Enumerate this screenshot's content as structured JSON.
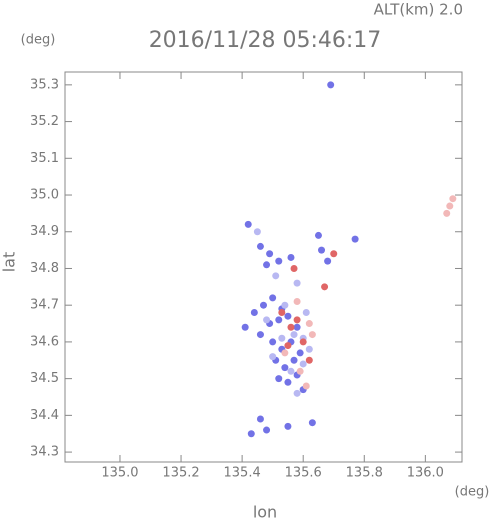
{
  "chart_data": {
    "type": "scatter",
    "title": "2016/11/28 05:46:17",
    "annotation": "ALT(km) 2.0",
    "y_unit": "(deg)",
    "x_unit": "(deg)",
    "xlabel": "lon",
    "ylabel": "lat",
    "xlim": [
      134.82,
      136.12
    ],
    "ylim": [
      34.273,
      35.335
    ],
    "xticks": [
      {
        "value": 135,
        "label": "135.0"
      },
      135.2,
      135.4,
      135.6,
      135.8,
      {
        "value": 136,
        "label": "136.0"
      }
    ],
    "yticks": [
      34.3,
      34.4,
      34.5,
      34.6,
      34.7,
      34.8,
      34.9,
      {
        "value": 35,
        "label": "35.0"
      },
      35.1,
      35.2,
      35.3
    ],
    "series": [
      {
        "color": "#7272e6",
        "x": [
          135.69,
          135.42,
          135.46,
          135.49,
          135.52,
          135.48,
          135.56,
          135.66,
          135.68,
          135.77,
          135.41,
          135.44,
          135.47,
          135.5,
          135.53,
          135.46,
          135.49,
          135.52,
          135.55,
          135.58,
          135.5,
          135.53,
          135.56,
          135.59,
          135.51,
          135.54,
          135.57,
          135.52,
          135.55,
          135.58,
          135.6,
          135.43,
          135.48,
          135.55,
          135.63,
          135.46,
          135.65
        ],
        "y": [
          35.3,
          34.92,
          34.86,
          34.84,
          34.82,
          34.81,
          34.83,
          34.85,
          34.82,
          34.88,
          34.64,
          34.68,
          34.7,
          34.72,
          34.69,
          34.62,
          34.65,
          34.66,
          34.67,
          34.64,
          34.6,
          34.58,
          34.6,
          34.57,
          34.55,
          34.53,
          34.55,
          34.5,
          34.49,
          34.51,
          34.47,
          34.35,
          34.36,
          34.37,
          34.38,
          34.39,
          34.89
        ]
      },
      {
        "color": "#b8b8f2",
        "x": [
          135.45,
          135.51,
          135.58,
          135.61,
          135.48,
          135.54,
          135.57,
          135.6,
          135.62,
          135.5,
          135.56,
          135.6,
          135.53,
          135.58
        ],
        "y": [
          34.9,
          34.78,
          34.76,
          34.68,
          34.66,
          34.7,
          34.62,
          34.61,
          34.58,
          34.56,
          34.52,
          34.54,
          34.61,
          34.46
        ]
      },
      {
        "color": "#e06666",
        "x": [
          135.57,
          135.7,
          135.67,
          135.58,
          135.56,
          135.6,
          135.55,
          135.62,
          135.53
        ],
        "y": [
          34.8,
          34.84,
          34.75,
          34.66,
          34.64,
          34.6,
          34.59,
          34.55,
          34.68
        ]
      },
      {
        "color": "#f2b8b8",
        "x": [
          136.08,
          136.09,
          136.07,
          135.58,
          135.62,
          135.63,
          135.54,
          135.59,
          135.61
        ],
        "y": [
          34.97,
          34.99,
          34.95,
          34.71,
          34.65,
          34.62,
          34.57,
          34.52,
          34.48
        ]
      }
    ]
  }
}
